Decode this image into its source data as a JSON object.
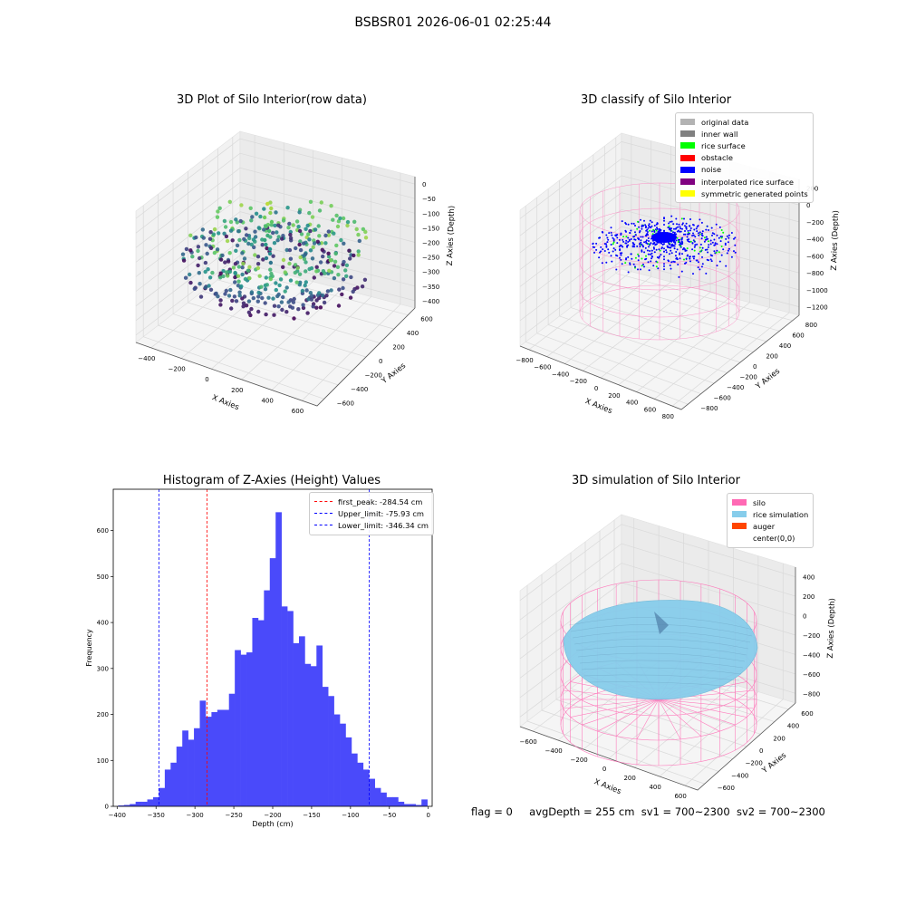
{
  "suptitle": "BSBSR01 2026-06-01 02:25:44",
  "status": {
    "flag": "flag = 0",
    "avg": "avgDepth = 255 cm",
    "sv1": "sv1 = 700~2300",
    "sv2": "sv2 = 700~2300"
  },
  "colors": {
    "hist": "#4a4afa",
    "silo_wire": "#ff69b4",
    "rice": "#87cdeb",
    "noise": "#0000ff",
    "rice_surface": "#00ff00"
  },
  "chart_data": [
    {
      "type": "scatter",
      "title": "3D Plot of Silo Interior(row data)",
      "xlabel": "X Axies",
      "ylabel": "Y Axies",
      "zlabel": "Z Axies (Depth)",
      "xticks": [
        "−400",
        "−200",
        "0",
        "200",
        "400",
        "600"
      ],
      "yticks": [
        "−600",
        "−400",
        "−200",
        "0",
        "200",
        "400",
        "600"
      ],
      "zticks": [
        "0",
        "−50",
        "−100",
        "−150",
        "−200",
        "−250",
        "−300",
        "−350",
        "−400"
      ],
      "colormap": "viridis"
    },
    {
      "type": "scatter",
      "title": "3D classify of Silo Interior",
      "xlabel": "X Axies",
      "ylabel": "Y Axies",
      "zlabel": "Z Axies (Depth)",
      "xticks": [
        "−800",
        "−600",
        "−400",
        "−200",
        "0",
        "200",
        "400",
        "600",
        "800"
      ],
      "yticks": [
        "−800",
        "−600",
        "−400",
        "−200",
        "0",
        "200",
        "400",
        "600",
        "800"
      ],
      "zticks": [
        "200",
        "0",
        "−200",
        "−400",
        "−600",
        "−800",
        "−1000",
        "−1200"
      ],
      "legend": [
        {
          "label": "original data",
          "color": "#b3b3b3"
        },
        {
          "label": "inner wall",
          "color": "#808080"
        },
        {
          "label": "rice surface",
          "color": "#00ff00"
        },
        {
          "label": "obstacle",
          "color": "#ff0000"
        },
        {
          "label": "noise",
          "color": "#0000ff"
        },
        {
          "label": "interpolated rice surface",
          "color": "#800080"
        },
        {
          "label": "symmetric generated points",
          "color": "#ffff00"
        }
      ]
    },
    {
      "type": "bar",
      "title": "Histogram of Z-Axies (Height) Values",
      "xlabel": "Depth (cm)",
      "ylabel": "Frequency",
      "xlim": [
        -405,
        5
      ],
      "ylim": [
        0,
        690
      ],
      "xticks": [
        -400,
        -350,
        -300,
        -250,
        -200,
        -150,
        -100,
        -50,
        0
      ],
      "yticks": [
        0,
        100,
        200,
        300,
        400,
        500,
        600
      ],
      "x": [
        -395,
        -387.5,
        -380,
        -372.5,
        -365,
        -357.5,
        -350,
        -342.5,
        -335,
        -327.5,
        -320,
        -312.5,
        -305,
        -297.5,
        -290,
        -282.5,
        -275,
        -267.5,
        -260,
        -252.5,
        -245,
        -237.5,
        -230,
        -222.5,
        -215,
        -207.5,
        -200,
        -192.5,
        -185,
        -177.5,
        -170,
        -162.5,
        -155,
        -147.5,
        -140,
        -132.5,
        -125,
        -117.5,
        -110,
        -102.5,
        -95,
        -87.5,
        -80,
        -72.5,
        -65,
        -57.5,
        -50,
        -42.5,
        -35,
        -27.5,
        -20,
        -12.5,
        -5
      ],
      "bin_width": 7.5,
      "values": [
        2,
        3,
        5,
        10,
        10,
        15,
        20,
        40,
        80,
        95,
        130,
        165,
        145,
        170,
        230,
        195,
        205,
        210,
        210,
        245,
        340,
        330,
        335,
        410,
        405,
        470,
        540,
        640,
        435,
        425,
        355,
        370,
        310,
        305,
        350,
        260,
        240,
        200,
        180,
        150,
        115,
        95,
        80,
        60,
        40,
        30,
        20,
        20,
        10,
        5,
        5,
        3,
        15
      ],
      "vlines": [
        {
          "label": "first_peak: -284.54 cm",
          "value": -284.54,
          "color": "#ff0000"
        },
        {
          "label": "Upper_limit: -75.93 cm",
          "value": -75.93,
          "color": "#0000ff"
        },
        {
          "label": "Lower_limit: -346.34 cm",
          "value": -346.34,
          "color": "#0000ff"
        }
      ]
    },
    {
      "type": "area",
      "title": "3D simulation of Silo Interior",
      "xlabel": "X Axies",
      "ylabel": "Y Axies",
      "zlabel": "Z Axies (Depth)",
      "xticks": [
        "−600",
        "−400",
        "−200",
        "0",
        "200",
        "400",
        "600"
      ],
      "yticks": [
        "−600",
        "−400",
        "−200",
        "0",
        "200",
        "400",
        "600"
      ],
      "zticks": [
        "400",
        "200",
        "0",
        "−200",
        "−400",
        "−600",
        "−800"
      ],
      "legend": [
        {
          "label": "silo",
          "color": "#ff69b4"
        },
        {
          "label": "rice simulation",
          "color": "#87cdeb"
        },
        {
          "label": "auger",
          "color": "#ff4500"
        },
        {
          "label": "center(0,0)",
          "color": "#ffffff"
        }
      ]
    }
  ]
}
